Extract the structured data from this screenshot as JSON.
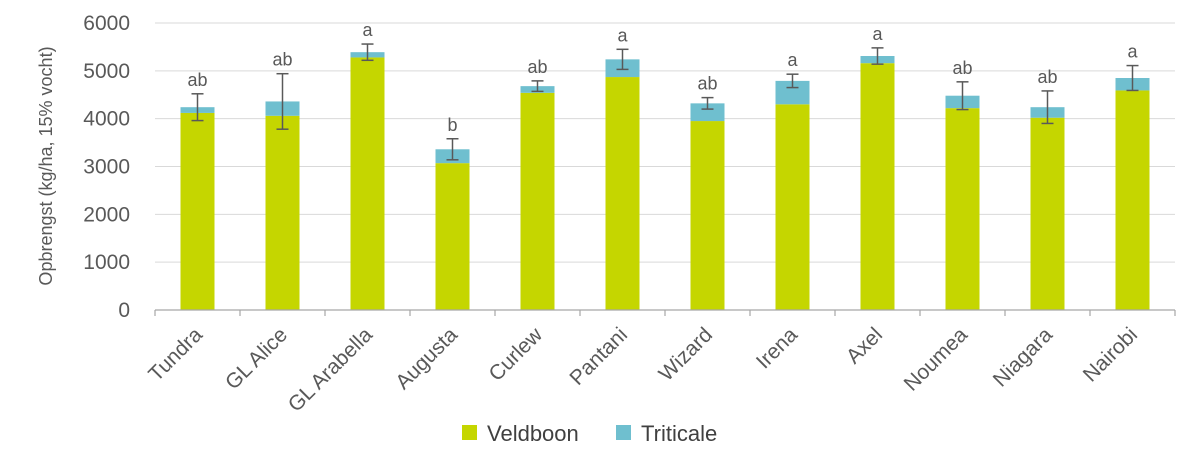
{
  "chart_data": {
    "type": "bar",
    "stacked": true,
    "categories": [
      "Tundra",
      "GL Alice",
      "GL Arabella",
      "Augusta",
      "Curlew",
      "Pantani",
      "Wizard",
      "Irena",
      "Axel",
      "Noumea",
      "Niagara",
      "Nairobi"
    ],
    "series": [
      {
        "name": "Veldboon",
        "color": "#c5d600",
        "values": [
          4120,
          4060,
          5280,
          3070,
          4540,
          4870,
          3950,
          4300,
          5160,
          4220,
          4020,
          4590
        ]
      },
      {
        "name": "Triticale",
        "color": "#6fbfcf",
        "values": [
          120,
          300,
          110,
          290,
          140,
          370,
          370,
          490,
          150,
          260,
          220,
          260
        ]
      }
    ],
    "totals": [
      4240,
      4360,
      5390,
      3360,
      4680,
      5240,
      4320,
      4790,
      5310,
      4480,
      4240,
      4850
    ],
    "error": [
      280,
      580,
      170,
      220,
      110,
      210,
      120,
      140,
      170,
      290,
      340,
      260
    ],
    "significance": [
      "ab",
      "ab",
      "a",
      "b",
      "ab",
      "a",
      "ab",
      "a",
      "a",
      "ab",
      "ab",
      "a"
    ],
    "ylabel": "Opbrengst (kg/ha, 15% vocht)",
    "xlabel": "",
    "ylim": [
      0,
      6000
    ],
    "yticks": [
      0,
      1000,
      2000,
      3000,
      4000,
      5000,
      6000
    ],
    "gridlines": true,
    "legend_position": "bottom"
  }
}
